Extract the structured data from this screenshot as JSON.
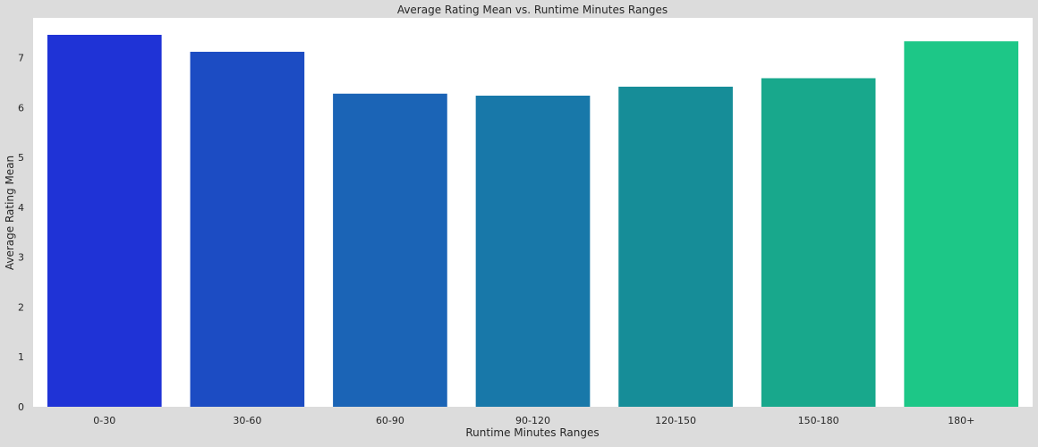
{
  "chart_data": {
    "type": "bar",
    "title": "Average Rating Mean vs. Runtime Minutes Ranges",
    "xlabel": "Runtime Minutes Ranges",
    "ylabel": "Average Rating Mean",
    "categories": [
      "0-30",
      "30-60",
      "60-90",
      "90-120",
      "120-150",
      "150-180",
      "180+"
    ],
    "values": [
      7.46,
      7.12,
      6.28,
      6.24,
      6.42,
      6.59,
      7.33
    ],
    "colors": [
      "#1f33d6",
      "#1c4cc3",
      "#1b64b6",
      "#1878a9",
      "#168d98",
      "#18a88c",
      "#1dc787"
    ],
    "ylim": [
      0,
      7.8
    ],
    "yticks": [
      0,
      1,
      2,
      3,
      4,
      5,
      6,
      7
    ],
    "grid": false,
    "legend": "none",
    "plot_background": "#ffffff",
    "figure_background": "#dcdcdc"
  }
}
